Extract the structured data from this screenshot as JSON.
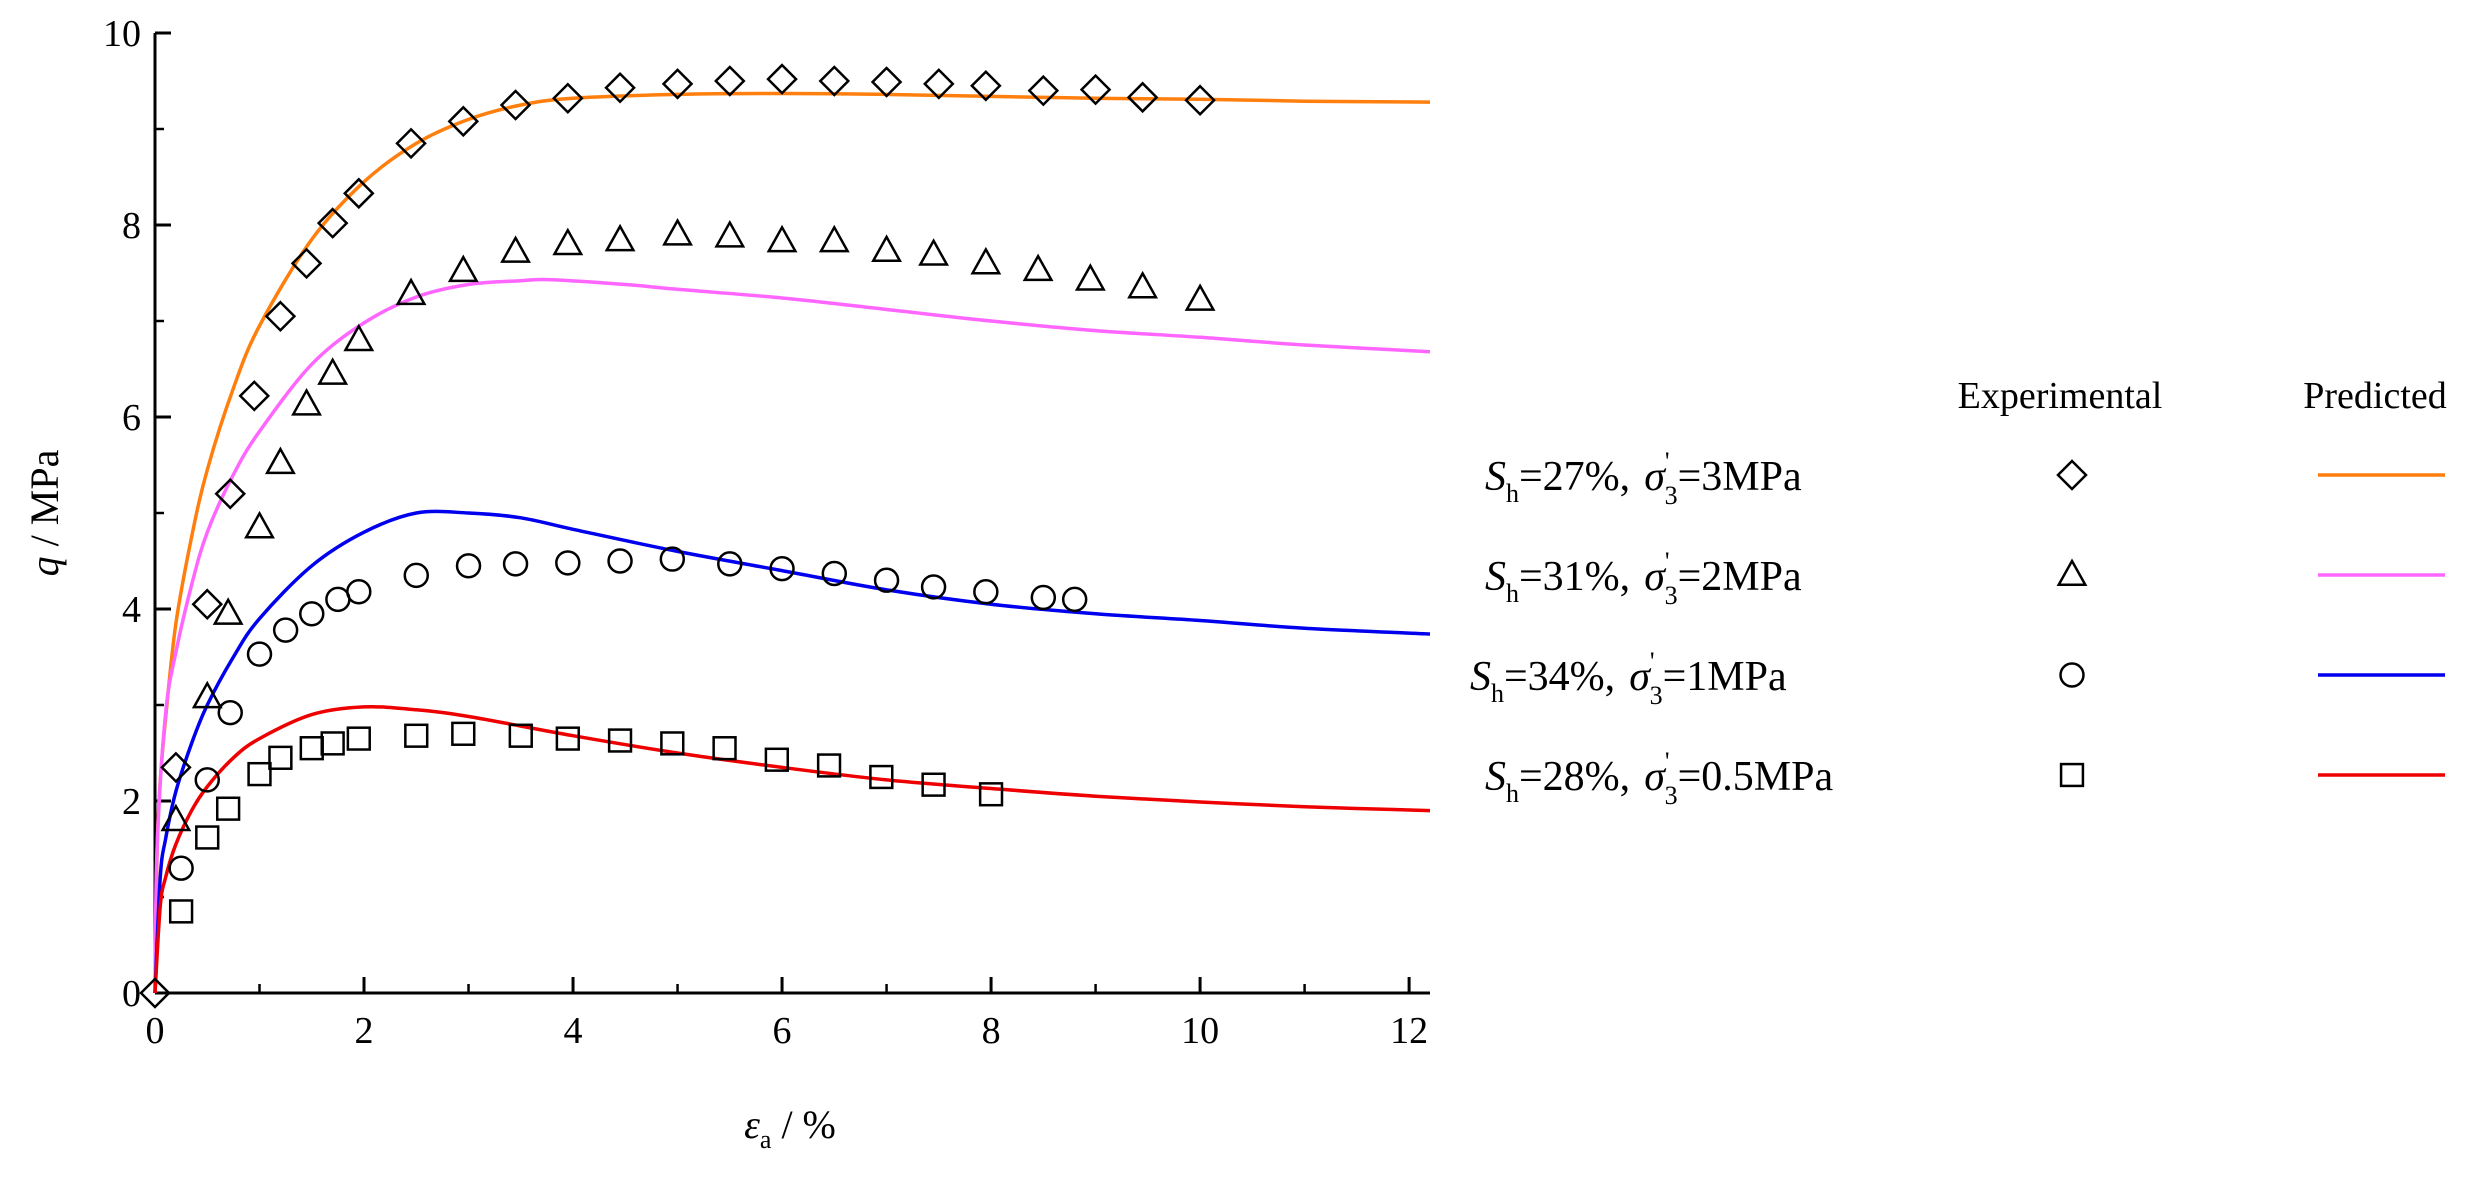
{
  "chart_data": {
    "type": "line",
    "xlabel": {
      "symbol": "ε",
      "subscript": "a",
      "unit": " / %"
    },
    "ylabel": {
      "symbol": "q",
      "unit": " / MPa"
    },
    "xlim": [
      0,
      12.2
    ],
    "ylim": [
      0,
      10
    ],
    "xticks": [
      "0",
      "2",
      "4",
      "6",
      "8",
      "10",
      "12"
    ],
    "yticks": [
      "0",
      "2",
      "4",
      "6",
      "8",
      "10"
    ],
    "grid": false,
    "legend": {
      "position": "right",
      "header_experimental": "Experimental",
      "header_predicted": "Predicted"
    },
    "series": [
      {
        "key": "s1",
        "label": {
          "sh_value": "=27%,",
          "sigma_value": "=3MPa"
        },
        "marker": "diamond",
        "color": "#ff7f0e",
        "experimental": [
          [
            0,
            0
          ],
          [
            0.2,
            2.35
          ],
          [
            0.5,
            4.05
          ],
          [
            0.72,
            5.2
          ],
          [
            0.95,
            6.22
          ],
          [
            1.2,
            7.05
          ],
          [
            1.45,
            7.6
          ],
          [
            1.7,
            8.02
          ],
          [
            1.95,
            8.33
          ],
          [
            2.45,
            8.85
          ],
          [
            2.95,
            9.08
          ],
          [
            3.45,
            9.25
          ],
          [
            3.95,
            9.32
          ],
          [
            4.45,
            9.43
          ],
          [
            5.0,
            9.47
          ],
          [
            5.5,
            9.5
          ],
          [
            6.0,
            9.52
          ],
          [
            6.5,
            9.5
          ],
          [
            7.0,
            9.49
          ],
          [
            7.5,
            9.47
          ],
          [
            7.95,
            9.45
          ],
          [
            8.5,
            9.4
          ],
          [
            9.0,
            9.41
          ],
          [
            9.45,
            9.33
          ],
          [
            10.0,
            9.3
          ]
        ],
        "predicted": [
          [
            0,
            0
          ],
          [
            0.02,
            1.5
          ],
          [
            0.05,
            2.2
          ],
          [
            0.1,
            2.85
          ],
          [
            0.2,
            3.85
          ],
          [
            0.35,
            4.75
          ],
          [
            0.5,
            5.45
          ],
          [
            0.75,
            6.3
          ],
          [
            1.0,
            6.95
          ],
          [
            1.5,
            7.85
          ],
          [
            2.0,
            8.45
          ],
          [
            2.5,
            8.85
          ],
          [
            3.0,
            9.1
          ],
          [
            3.5,
            9.25
          ],
          [
            4.0,
            9.32
          ],
          [
            5.0,
            9.36
          ],
          [
            6.0,
            9.37
          ],
          [
            7.0,
            9.36
          ],
          [
            8.0,
            9.34
          ],
          [
            9.0,
            9.32
          ],
          [
            10.0,
            9.31
          ],
          [
            11.0,
            9.29
          ],
          [
            12.2,
            9.28
          ]
        ]
      },
      {
        "key": "s2",
        "label": {
          "sh_value": "=31%,",
          "sigma_value": "=2MPa"
        },
        "marker": "triangle",
        "color": "#ff66ff",
        "experimental": [
          [
            0.2,
            1.8
          ],
          [
            0.5,
            3.08
          ],
          [
            0.7,
            3.95
          ],
          [
            1.0,
            4.85
          ],
          [
            1.2,
            5.52
          ],
          [
            1.45,
            6.13
          ],
          [
            1.7,
            6.45
          ],
          [
            1.95,
            6.8
          ],
          [
            2.45,
            7.28
          ],
          [
            2.95,
            7.52
          ],
          [
            3.45,
            7.72
          ],
          [
            3.95,
            7.8
          ],
          [
            4.45,
            7.84
          ],
          [
            5.0,
            7.9
          ],
          [
            5.5,
            7.88
          ],
          [
            6.0,
            7.83
          ],
          [
            6.5,
            7.83
          ],
          [
            7.0,
            7.73
          ],
          [
            7.45,
            7.69
          ],
          [
            7.95,
            7.6
          ],
          [
            8.45,
            7.53
          ],
          [
            8.95,
            7.43
          ],
          [
            9.45,
            7.35
          ],
          [
            10.0,
            7.22
          ]
        ],
        "predicted": [
          [
            0,
            0
          ],
          [
            0.02,
            1.5
          ],
          [
            0.1,
            2.9
          ],
          [
            0.2,
            3.55
          ],
          [
            0.35,
            4.25
          ],
          [
            0.5,
            4.8
          ],
          [
            0.75,
            5.4
          ],
          [
            1.0,
            5.85
          ],
          [
            1.5,
            6.55
          ],
          [
            2.0,
            6.98
          ],
          [
            2.5,
            7.25
          ],
          [
            3.0,
            7.38
          ],
          [
            3.5,
            7.42
          ],
          [
            3.8,
            7.43
          ],
          [
            4.5,
            7.38
          ],
          [
            5.0,
            7.33
          ],
          [
            6.0,
            7.24
          ],
          [
            7.0,
            7.12
          ],
          [
            8.0,
            7.0
          ],
          [
            9.0,
            6.9
          ],
          [
            10.0,
            6.83
          ],
          [
            11.0,
            6.75
          ],
          [
            12.2,
            6.68
          ]
        ]
      },
      {
        "key": "s3",
        "label": {
          "sh_value": "=34%,",
          "sigma_value": "=1MPa"
        },
        "marker": "circle",
        "color": "#0000ee",
        "experimental": [
          [
            0.25,
            1.3
          ],
          [
            0.5,
            2.22
          ],
          [
            0.72,
            2.92
          ],
          [
            1.0,
            3.53
          ],
          [
            1.25,
            3.78
          ],
          [
            1.5,
            3.95
          ],
          [
            1.75,
            4.1
          ],
          [
            1.95,
            4.18
          ],
          [
            2.5,
            4.35
          ],
          [
            3.0,
            4.45
          ],
          [
            3.45,
            4.47
          ],
          [
            3.95,
            4.48
          ],
          [
            4.45,
            4.5
          ],
          [
            4.95,
            4.52
          ],
          [
            5.5,
            4.47
          ],
          [
            6.0,
            4.42
          ],
          [
            6.5,
            4.37
          ],
          [
            7.0,
            4.3
          ],
          [
            7.45,
            4.23
          ],
          [
            7.95,
            4.18
          ],
          [
            8.5,
            4.12
          ],
          [
            8.8,
            4.1
          ]
        ],
        "predicted": [
          [
            0,
            0
          ],
          [
            0.05,
            1.2
          ],
          [
            0.1,
            1.6
          ],
          [
            0.2,
            2.1
          ],
          [
            0.35,
            2.6
          ],
          [
            0.5,
            3.0
          ],
          [
            0.75,
            3.5
          ],
          [
            1.0,
            3.9
          ],
          [
            1.5,
            4.45
          ],
          [
            2.0,
            4.8
          ],
          [
            2.5,
            5.0
          ],
          [
            3.0,
            5.0
          ],
          [
            3.5,
            4.95
          ],
          [
            4.0,
            4.83
          ],
          [
            5.0,
            4.6
          ],
          [
            6.0,
            4.4
          ],
          [
            7.0,
            4.2
          ],
          [
            8.0,
            4.05
          ],
          [
            9.0,
            3.95
          ],
          [
            10.0,
            3.88
          ],
          [
            11.0,
            3.8
          ],
          [
            12.2,
            3.74
          ]
        ]
      },
      {
        "key": "s4",
        "label": {
          "sh_value": "=28%,",
          "sigma_value": "=0.5MPa"
        },
        "marker": "square",
        "color": "#ee0000",
        "experimental": [
          [
            0.25,
            0.85
          ],
          [
            0.5,
            1.62
          ],
          [
            0.7,
            1.92
          ],
          [
            1.0,
            2.28
          ],
          [
            1.2,
            2.45
          ],
          [
            1.5,
            2.55
          ],
          [
            1.7,
            2.6
          ],
          [
            1.95,
            2.65
          ],
          [
            2.5,
            2.68
          ],
          [
            2.95,
            2.7
          ],
          [
            3.5,
            2.68
          ],
          [
            3.95,
            2.65
          ],
          [
            4.45,
            2.63
          ],
          [
            4.95,
            2.6
          ],
          [
            5.45,
            2.55
          ],
          [
            5.95,
            2.43
          ],
          [
            6.45,
            2.37
          ],
          [
            6.95,
            2.25
          ],
          [
            7.45,
            2.17
          ],
          [
            8.0,
            2.07
          ]
        ],
        "predicted": [
          [
            0,
            0
          ],
          [
            0.05,
            0.9
          ],
          [
            0.1,
            1.2
          ],
          [
            0.2,
            1.55
          ],
          [
            0.35,
            1.9
          ],
          [
            0.5,
            2.15
          ],
          [
            0.75,
            2.45
          ],
          [
            1.0,
            2.65
          ],
          [
            1.5,
            2.9
          ],
          [
            2.0,
            2.98
          ],
          [
            2.5,
            2.95
          ],
          [
            3.0,
            2.88
          ],
          [
            4.0,
            2.68
          ],
          [
            5.0,
            2.5
          ],
          [
            6.0,
            2.35
          ],
          [
            7.0,
            2.22
          ],
          [
            8.0,
            2.13
          ],
          [
            9.0,
            2.05
          ],
          [
            10.0,
            1.99
          ],
          [
            11.0,
            1.94
          ],
          [
            12.2,
            1.9
          ]
        ]
      }
    ]
  }
}
